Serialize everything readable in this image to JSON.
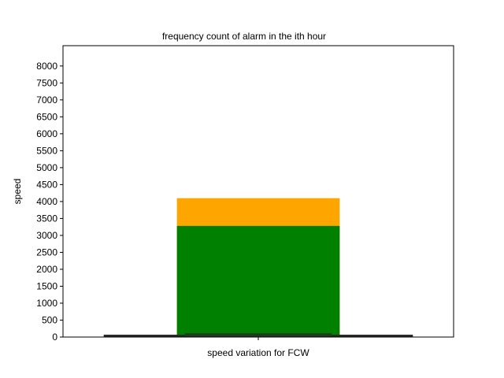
{
  "chart_data": {
    "type": "bar",
    "title": "frequency count of alarm in the ith hour",
    "xlabel": "speed variation for FCW",
    "ylabel": "speed",
    "ylim": [
      0,
      8600
    ],
    "yticks": [
      0,
      500,
      1000,
      1500,
      2000,
      2500,
      3000,
      3500,
      4000,
      4500,
      5000,
      5500,
      6000,
      6500,
      7000,
      7500,
      8000
    ],
    "xticks": [
      ""
    ],
    "grid": false,
    "legend": "none",
    "bars": [
      {
        "color": "#ffa500",
        "x_center": 0,
        "width": 0.5,
        "bottom": 0,
        "value": 4100
      },
      {
        "color": "#008000",
        "x_center": 0,
        "width": 0.5,
        "bottom": 0,
        "value": 3280
      },
      {
        "color": "#2a2a2a",
        "x_center": 0,
        "width": 0.95,
        "bottom": 0,
        "value": 70
      },
      {
        "color": "#1f3a1f",
        "x_center": 0,
        "width": 0.45,
        "bottom": 0,
        "value": 110
      }
    ],
    "xlim": [
      -0.6,
      0.6
    ]
  }
}
